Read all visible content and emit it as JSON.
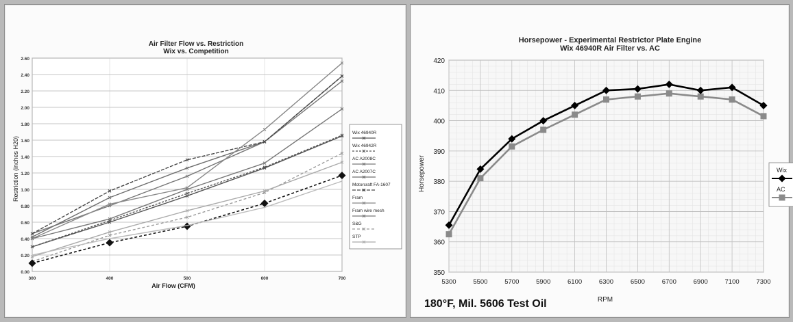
{
  "chart_data": [
    {
      "type": "line",
      "title": "Air Filter Flow vs. Restriction",
      "subtitle": "Wix vs. Competition",
      "xlabel": "Air Flow (CFM)",
      "ylabel": "Restriction (inches H20)",
      "x": [
        300,
        400,
        500,
        600,
        700
      ],
      "xlim": [
        300,
        700
      ],
      "ylim": [
        0,
        2.6
      ],
      "yticks": [
        "0.00",
        "0.20",
        "0.40",
        "0.60",
        "0.80",
        "1.00",
        "1.20",
        "1.40",
        "1.60",
        "1.80",
        "2.00",
        "2.20",
        "2.40",
        "2.60"
      ],
      "xticks": [
        "300",
        "400",
        "500",
        "600",
        "700"
      ],
      "grid": true,
      "legend_position": "right",
      "series": [
        {
          "name": "Wix 46940R",
          "values": [
            0.3,
            0.6,
            0.92,
            1.26,
            1.65
          ],
          "color": "#555555",
          "dash": "",
          "marker": "x"
        },
        {
          "name": "Wix 46942R",
          "values": [
            0.3,
            0.62,
            0.95,
            1.27,
            1.66
          ],
          "color": "#555555",
          "dash": "3,2",
          "marker": "x"
        },
        {
          "name": "AC A2008C",
          "values": [
            0.46,
            0.8,
            1.16,
            1.58,
            2.32
          ],
          "color": "#777777",
          "dash": "",
          "marker": "x"
        },
        {
          "name": "AC A2007C",
          "values": [
            0.42,
            0.9,
            1.26,
            1.58,
            2.38
          ],
          "color": "#6e6e6e",
          "dash": "",
          "marker": "x"
        },
        {
          "name": "Motorcraft FA-1607",
          "values": [
            0.46,
            0.98,
            1.36,
            1.58,
            2.38
          ],
          "color": "#444444",
          "dash": "5,2",
          "marker": "x"
        },
        {
          "name": "Fram",
          "values": [
            0.4,
            0.82,
            1.02,
            1.73,
            2.54
          ],
          "color": "#888888",
          "dash": "",
          "marker": "x"
        },
        {
          "name": "Fram wire mesh",
          "values": [
            0.4,
            0.64,
            1.0,
            1.32,
            1.98
          ],
          "color": "#777777",
          "dash": "",
          "marker": "x"
        },
        {
          "name": "S&G",
          "values": [
            0.12,
            0.44,
            0.66,
            0.96,
            1.44
          ],
          "color": "#999999",
          "dash": "4,3",
          "marker": "x"
        },
        {
          "name": "STP",
          "values": [
            0.18,
            0.48,
            0.74,
            0.98,
            1.33
          ],
          "color": "#aaaaaa",
          "dash": "",
          "marker": "x"
        },
        {
          "name": "",
          "values": [
            0.1,
            0.35,
            0.55,
            0.83,
            1.17
          ],
          "color": "#111111",
          "dash": "4,3",
          "marker": "diamond"
        },
        {
          "name": "",
          "values": [
            0.2,
            0.4,
            0.56,
            0.78,
            1.1
          ],
          "color": "#bbbbbb",
          "dash": "",
          "marker": "none"
        }
      ]
    },
    {
      "type": "line",
      "title": "Horsepower - Experimental Restrictor Plate Engine",
      "subtitle": "Wix 46940R Air Filter vs. AC",
      "xlabel": "RPM",
      "ylabel": "Horsepower",
      "categories": [
        "5300",
        "5500",
        "5700",
        "5900",
        "6100",
        "6300",
        "6500",
        "6700",
        "6900",
        "7100",
        "7300"
      ],
      "ylim": [
        350,
        420
      ],
      "yticks": [
        "350",
        "360",
        "370",
        "380",
        "390",
        "400",
        "410",
        "420"
      ],
      "grid": true,
      "legend_position": "right",
      "annotation": "180°F, Mil. 5606 Test Oil",
      "series": [
        {
          "name": "Wix",
          "values": [
            365.5,
            384,
            394,
            400,
            405,
            410,
            410.5,
            412,
            410,
            411,
            405
          ],
          "color": "#000000",
          "marker": "diamond"
        },
        {
          "name": "AC",
          "values": [
            362.5,
            381,
            391.5,
            397,
            402,
            407,
            408,
            409,
            408,
            407,
            401.5
          ],
          "color": "#8a8a8a",
          "marker": "square"
        }
      ]
    }
  ]
}
